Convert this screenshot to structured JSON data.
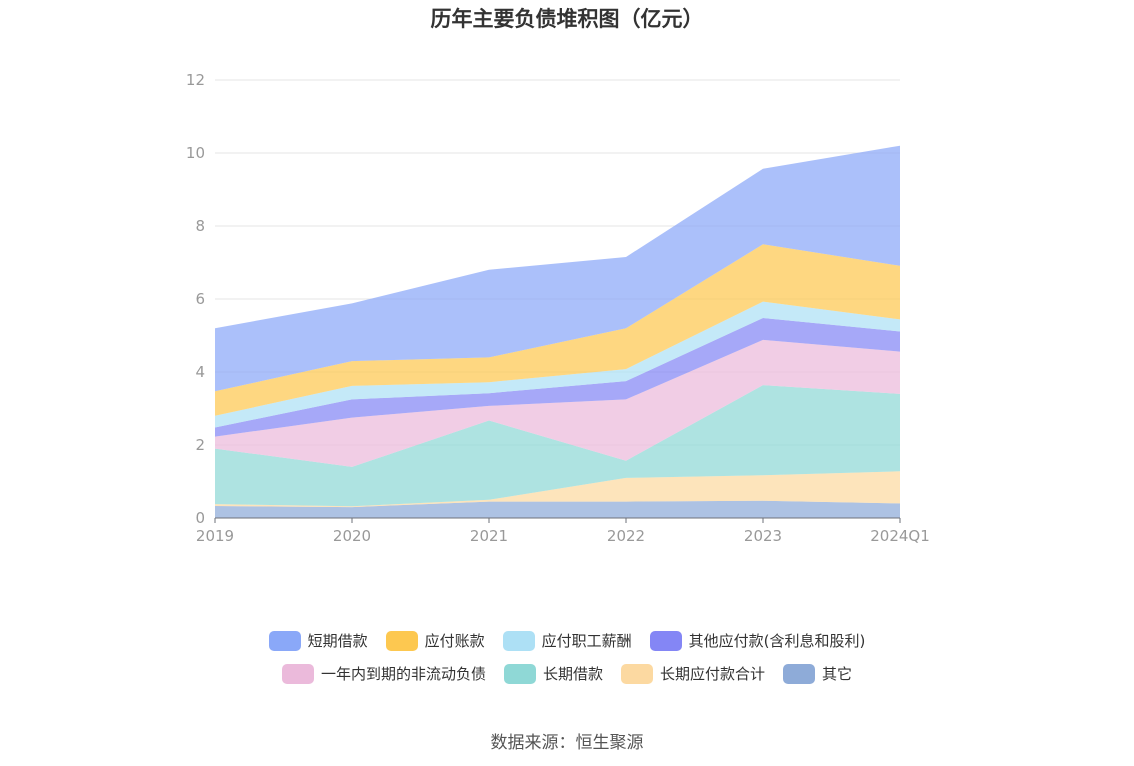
{
  "chart_data": {
    "type": "area",
    "stacked": true,
    "title": "历年主要负债堆积图（亿元）",
    "categories": [
      "2019",
      "2020",
      "2021",
      "2022",
      "2023",
      "2024Q1"
    ],
    "yticks": [
      "0",
      "2",
      "4",
      "6",
      "8",
      "10",
      "12"
    ],
    "ylim": [
      0,
      12
    ],
    "grid": true,
    "legend_position": "bottom",
    "series": [
      {
        "name": "其它",
        "color": "#8eabd8",
        "values": [
          0.33,
          0.3,
          0.45,
          0.45,
          0.47,
          0.4
        ]
      },
      {
        "name": "长期应付款合计",
        "color": "#fcd9a1",
        "values": [
          0.05,
          0.02,
          0.05,
          0.65,
          0.7,
          0.88
        ]
      },
      {
        "name": "长期借款",
        "color": "#8fd8d6",
        "values": [
          1.52,
          1.08,
          2.17,
          0.47,
          2.47,
          2.12
        ]
      },
      {
        "name": "一年内到期的非流动负债",
        "color": "#ebbadb",
        "values": [
          0.33,
          1.35,
          0.4,
          1.68,
          1.24,
          1.16
        ]
      },
      {
        "name": "其他应付款(含利息和股利)",
        "color": "#8486f5",
        "values": [
          0.25,
          0.5,
          0.35,
          0.5,
          0.6,
          0.55
        ]
      },
      {
        "name": "应付职工薪酬",
        "color": "#ade0f5",
        "values": [
          0.32,
          0.37,
          0.3,
          0.33,
          0.45,
          0.33
        ]
      },
      {
        "name": "应付账款",
        "color": "#fdc850",
        "values": [
          0.67,
          0.68,
          0.68,
          1.12,
          1.57,
          1.47
        ]
      },
      {
        "name": "短期借款",
        "color": "#8aa8f8",
        "values": [
          1.73,
          1.58,
          2.4,
          1.95,
          2.07,
          3.29
        ]
      }
    ]
  },
  "legend": {
    "rows": [
      [
        {
          "label": "短期借款",
          "color": "#8aa8f8"
        },
        {
          "label": "应付账款",
          "color": "#fdc850"
        },
        {
          "label": "应付职工薪酬",
          "color": "#ade0f5"
        },
        {
          "label": "其他应付款(含利息和股利)",
          "color": "#8486f5"
        }
      ],
      [
        {
          "label": "一年内到期的非流动负债",
          "color": "#ebbadb"
        },
        {
          "label": "长期借款",
          "color": "#8fd8d6"
        },
        {
          "label": "长期应付款合计",
          "color": "#fcd9a1"
        },
        {
          "label": "其它",
          "color": "#8eabd8"
        }
      ]
    ]
  },
  "source": "数据来源：恒生聚源"
}
